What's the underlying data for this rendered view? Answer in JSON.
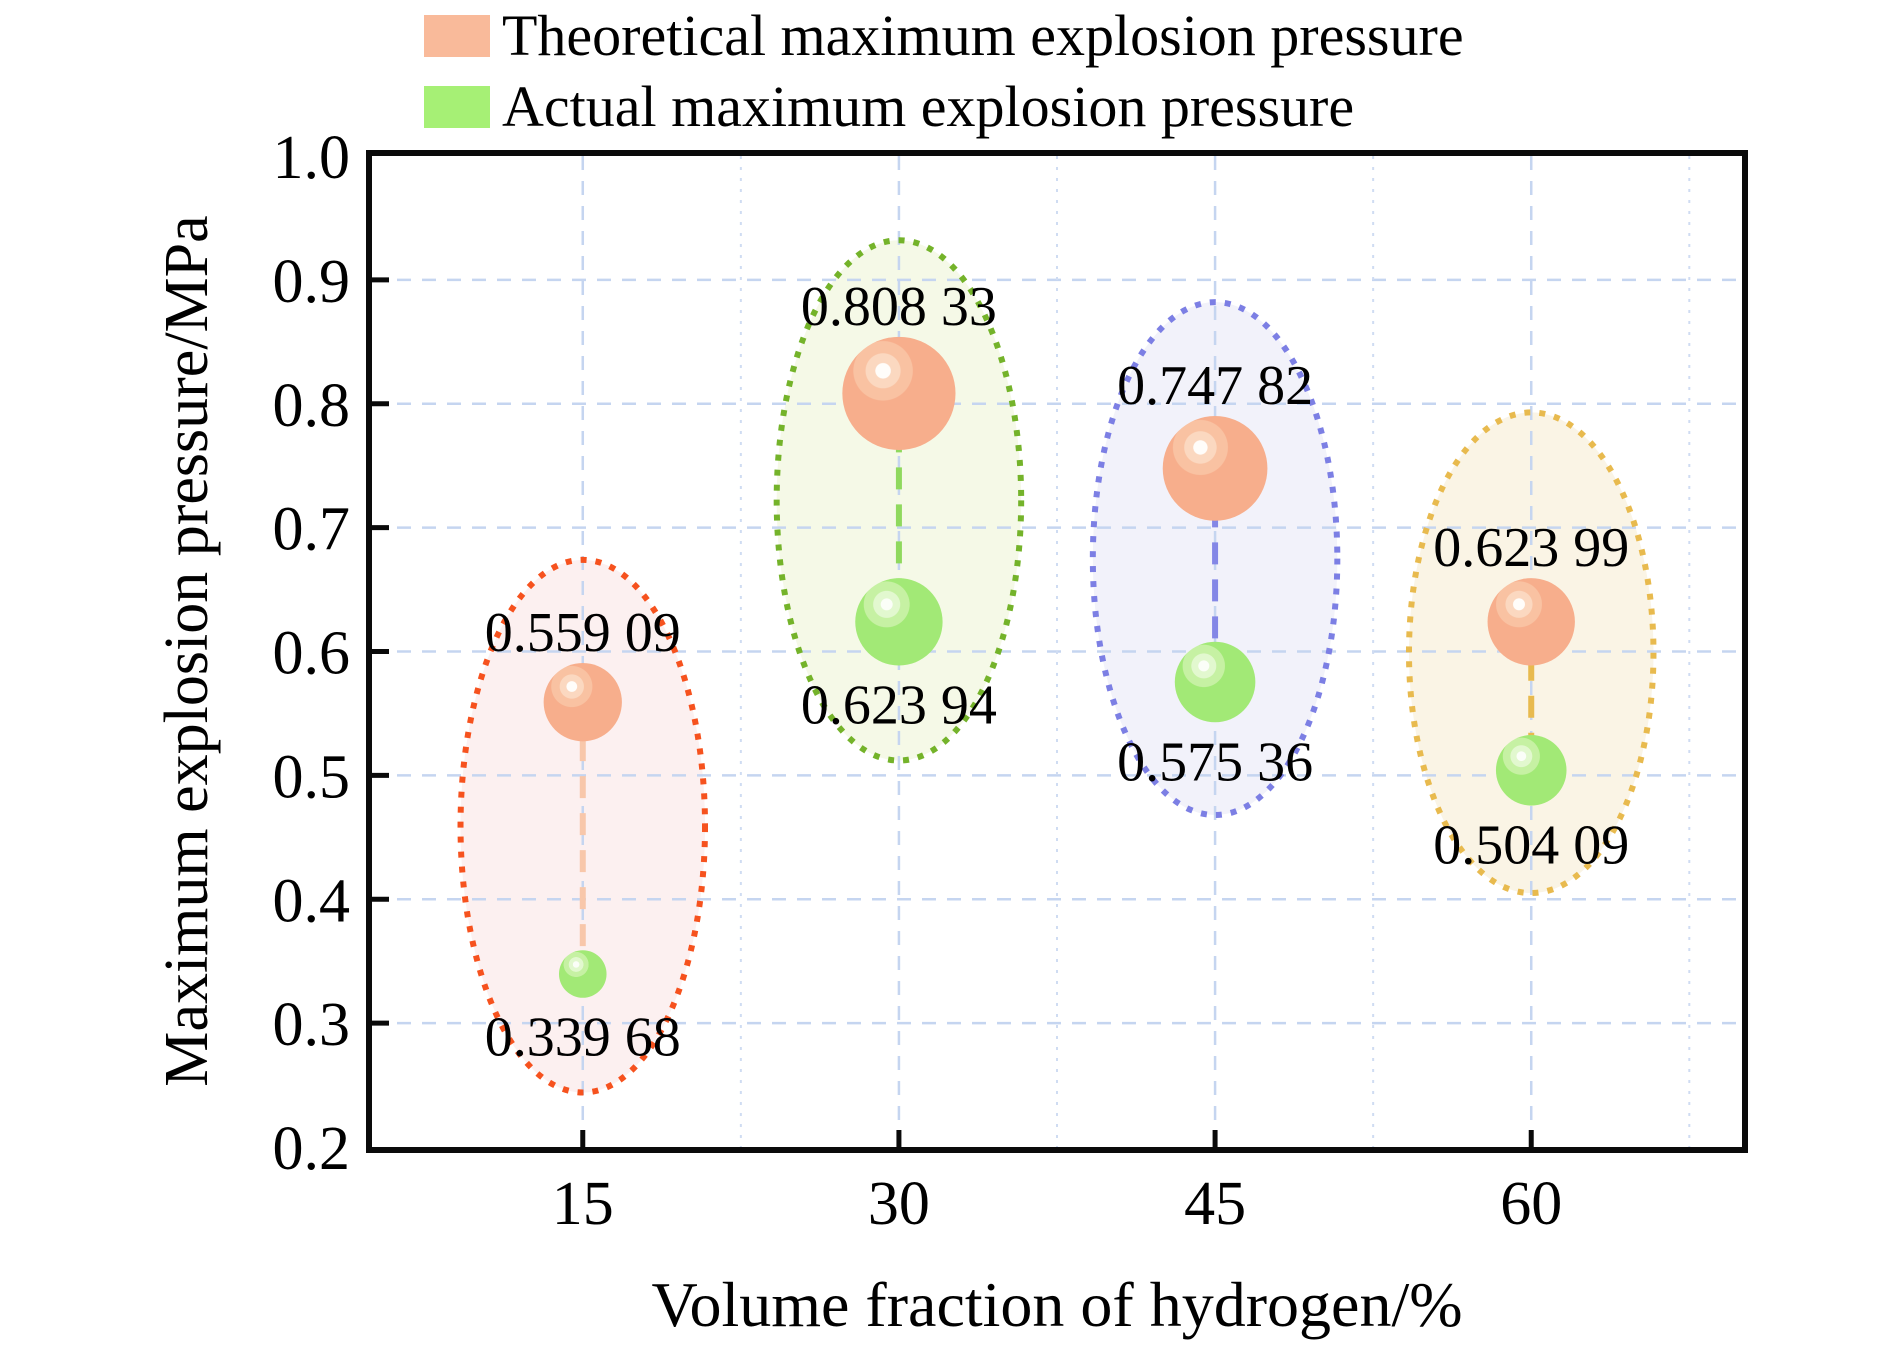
{
  "legend": {
    "items": [
      {
        "label": "Theoretical maximum explosion pressure",
        "swatch_color": "#F9BA9A"
      },
      {
        "label": "Actual maximum explosion pressure",
        "swatch_color": "#A6F075"
      }
    ]
  },
  "x_title": "Volume fraction of hydrogen/%",
  "y_title": "Maximum explosion pressure/MPa",
  "chart_data": {
    "type": "bubble",
    "title": "",
    "xlabel": "Volume fraction of hydrogen/%",
    "ylabel": "Maximum explosion pressure/MPa",
    "xlim": [
      5,
      70
    ],
    "ylim": [
      0.2,
      1.0
    ],
    "grid": true,
    "legend_position": "top-left",
    "x": [
      15,
      30,
      45,
      60
    ],
    "series": [
      {
        "name": "Theoretical maximum explosion pressure",
        "color": "#F7AE8C",
        "values": [
          0.55909,
          0.80833,
          0.74782,
          0.62399
        ],
        "labels": [
          "0.559 09",
          "0.808 33",
          "0.747 82",
          "0.623 99"
        ]
      },
      {
        "name": "Actual maximum explosion pressure",
        "color": "#A2E976",
        "values": [
          0.33968,
          0.62394,
          0.57536,
          0.50409
        ],
        "labels": [
          "0.339 68",
          "0.623 94",
          "0.575 36",
          "0.504 09"
        ]
      }
    ],
    "groups": [
      {
        "x": 15,
        "ellipse_color": "#F6521E",
        "ellipse_fill": "#FCF0F0",
        "connector_color": "#F8C7AA",
        "ellipse_cy": 0.459,
        "ellipse_ry": 0.215
      },
      {
        "x": 30,
        "ellipse_color": "#74B32A",
        "ellipse_fill": "#F5F9E7",
        "connector_color": "#8FD95E",
        "ellipse_cy": 0.722,
        "ellipse_ry": 0.21
      },
      {
        "x": 45,
        "ellipse_color": "#7C7FE4",
        "ellipse_fill": "#F2F2FA",
        "connector_color": "#8487E6",
        "ellipse_cy": 0.675,
        "ellipse_ry": 0.207
      },
      {
        "x": 60,
        "ellipse_color": "#E8BA4E",
        "ellipse_fill": "#FAF4E5",
        "connector_color": "#E8BA4E",
        "ellipse_cy": 0.599,
        "ellipse_ry": 0.194
      }
    ],
    "ellipse_rx_units": 5.8,
    "y_axis": {
      "ticks": [
        {
          "v": 1.0,
          "label": "1.0"
        },
        {
          "v": 0.9,
          "label": "0.9"
        },
        {
          "v": 0.8,
          "label": "0.8"
        },
        {
          "v": 0.7,
          "label": "0.7"
        },
        {
          "v": 0.6,
          "label": "0.6"
        },
        {
          "v": 0.5,
          "label": "0.5"
        },
        {
          "v": 0.4,
          "label": "0.4"
        },
        {
          "v": 0.3,
          "label": "0.3"
        },
        {
          "v": 0.2,
          "label": "0.2"
        }
      ]
    },
    "x_axis": {
      "ticks": [
        {
          "v": 15,
          "label": "15"
        },
        {
          "v": 30,
          "label": "30"
        },
        {
          "v": 45,
          "label": "45"
        },
        {
          "v": 60,
          "label": "60"
        }
      ],
      "minor_ticks": [
        22.5,
        37.5,
        52.5,
        67.5
      ]
    },
    "colors": {
      "grid_major": "#C5D5F0",
      "grid_minor": "#CFDCF2",
      "axis": "#0a0a0a",
      "label_text": "#000000",
      "ball_orange": {
        "body": "#F7AE8C",
        "ring1": "#F9C2A2",
        "ring2": "#FBD8C0",
        "core": "#FFFDFA"
      },
      "ball_green": {
        "body": "#A2E976",
        "ring1": "#C6F1A3",
        "ring2": "#E2F8CF",
        "core": "#FBFEF8"
      }
    }
  }
}
